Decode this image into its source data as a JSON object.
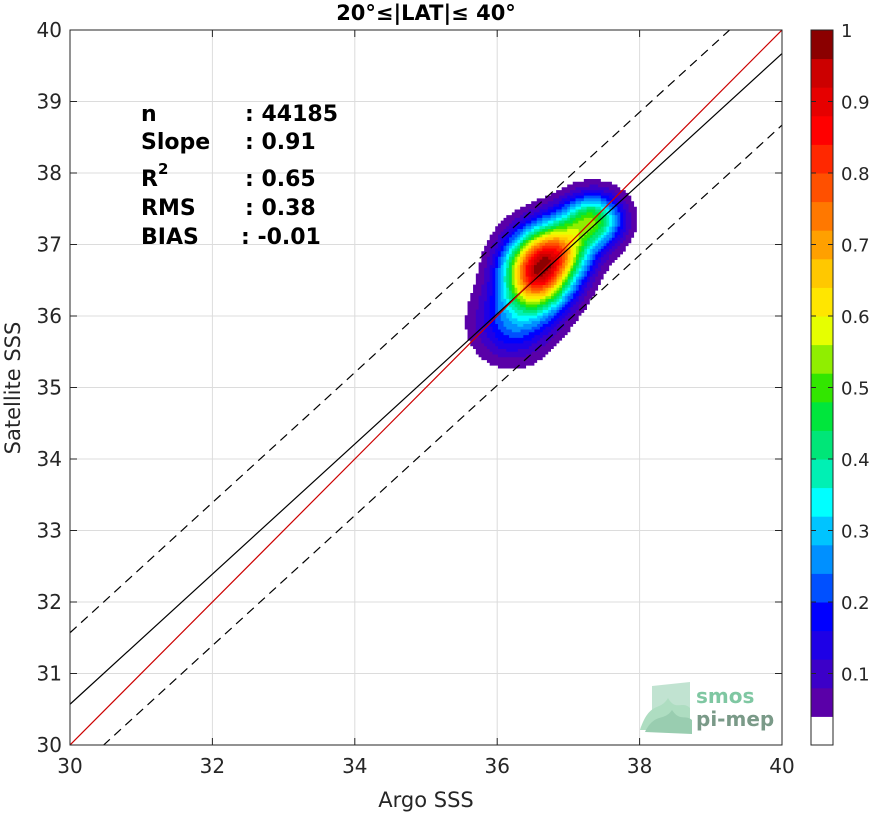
{
  "chart_data": {
    "type": "contour-scatter",
    "title": "20°≤|LAT|≤ 40°",
    "xlabel": "Argo SSS",
    "ylabel": "Satellite SSS",
    "xlim": [
      30,
      40
    ],
    "ylim": [
      30,
      40
    ],
    "xticks": [
      30,
      32,
      34,
      36,
      38,
      40
    ],
    "yticks": [
      30,
      31,
      32,
      33,
      34,
      35,
      36,
      37,
      38,
      39,
      40
    ],
    "grid": true,
    "stats": {
      "n_label": "n",
      "n_value": ": 44185",
      "slope_label": "Slope",
      "slope_value": ": 0.91",
      "r2_label": "R",
      "r2_sup": "2",
      "r2_value": ": 0.65",
      "rms_label": "RMS",
      "rms_value": ": 0.38",
      "bias_label": "BIAS",
      "bias_value": ": -0.01"
    },
    "lines": {
      "one_to_one": {
        "slope": 1,
        "intercept": 0,
        "color": "#cc0000"
      },
      "fit": {
        "slope": 0.91,
        "intercept": 3.27,
        "color": "#000000"
      },
      "upper_dashed": {
        "slope": 0.91,
        "intercept": 4.27,
        "color": "#000000"
      },
      "lower_dashed": {
        "slope": 0.91,
        "intercept": 2.27,
        "color": "#000000"
      }
    },
    "density": {
      "peaks": [
        {
          "x": 36.55,
          "y": 36.6,
          "weight": 1.0,
          "sx": 0.32,
          "sy": 0.36
        },
        {
          "x": 37.35,
          "y": 37.35,
          "weight": 0.55,
          "sx": 0.28,
          "sy": 0.25
        },
        {
          "x": 36.9,
          "y": 36.95,
          "weight": 0.55,
          "sx": 0.3,
          "sy": 0.3
        },
        {
          "x": 36.2,
          "y": 35.9,
          "weight": 0.25,
          "sx": 0.35,
          "sy": 0.35
        }
      ]
    },
    "colorbar": {
      "ticks": [
        0.1,
        0.2,
        0.3,
        0.4,
        0.5,
        0.6,
        0.7,
        0.8,
        0.9,
        1
      ],
      "tick_labels": [
        "0.1",
        "0.2",
        "0.3",
        "0.4",
        "0.5",
        "0.6",
        "0.7",
        "0.8",
        "0.9",
        "1"
      ],
      "colors": [
        "#ffffff",
        "#5a00a8",
        "#3c00c8",
        "#1e00e6",
        "#0000ff",
        "#0050ff",
        "#0090ff",
        "#00c4ff",
        "#00ffff",
        "#00f0b4",
        "#00e678",
        "#00e63c",
        "#32e600",
        "#90ee00",
        "#e6ff00",
        "#ffe600",
        "#ffc800",
        "#ffa000",
        "#ff7800",
        "#ff5000",
        "#ff2800",
        "#ff0000",
        "#e60000",
        "#cc0000",
        "#8b0000"
      ],
      "range": [
        0,
        1
      ]
    }
  },
  "logo": {
    "line1": "smos",
    "line2": "pi-mep"
  }
}
